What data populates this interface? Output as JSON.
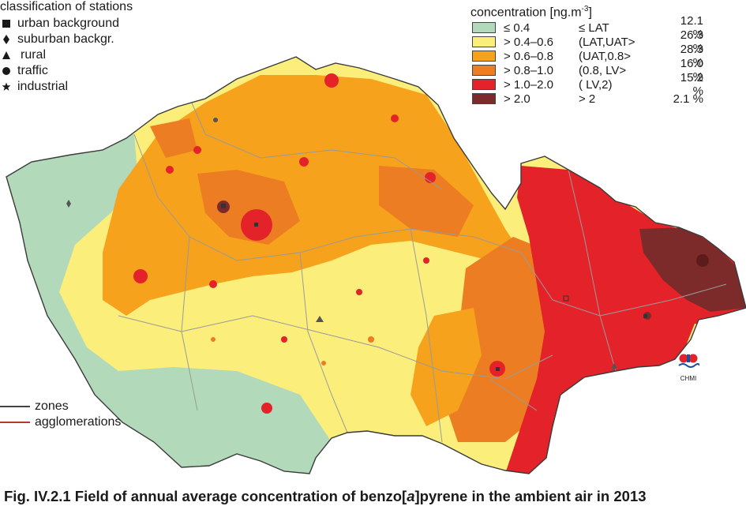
{
  "stations_legend": {
    "title": "classification of stations",
    "items": [
      {
        "label": "urban background",
        "symbol": "square-icon"
      },
      {
        "label": "suburban backgr.",
        "symbol": "diamond-icon"
      },
      {
        "label": "rural",
        "symbol": "triangle-icon"
      },
      {
        "label": "traffic",
        "symbol": "circle-icon"
      },
      {
        "label": "industrial",
        "symbol": "star-icon"
      }
    ]
  },
  "concentration_legend": {
    "title": "concentration [ng.m",
    "title_exp": "-3",
    "title_close": "]",
    "rows": [
      {
        "range": "≤ 0.4",
        "class": "≤ LAT",
        "percent": "12.1 %",
        "color": "#b2d9b9"
      },
      {
        "range": "> 0.4–0.6",
        "class": "(LAT,UAT>",
        "percent": "26.3 %",
        "color": "#fbee7a"
      },
      {
        "range": "> 0.6–0.8",
        "class": "(UAT,0.8>",
        "percent": "28.3 %",
        "color": "#f6a21c"
      },
      {
        "range": "> 0.8–1.0",
        "class": "(0.8, LV>",
        "percent": "16.0 %",
        "color": "#ed7d22"
      },
      {
        "range": "> 1.0–2.0",
        "class": "( LV,2)",
        "percent": "15.2 %",
        "color": "#e32329"
      },
      {
        "range": "> 2.0",
        "class": "> 2",
        "percent": "2.1 %",
        "color": "#7d2a2a"
      }
    ]
  },
  "boundaries_legend": {
    "zones": {
      "label": "zones",
      "color": "#444444"
    },
    "agglomerations": {
      "label": "agglomerations",
      "color": "#b03a30"
    }
  },
  "logo": {
    "text": "CHMI"
  },
  "caption": "Fig. IV.2.1  Field of annual average concentration of benzo[a]pyrene in the ambient air in 2013"
}
